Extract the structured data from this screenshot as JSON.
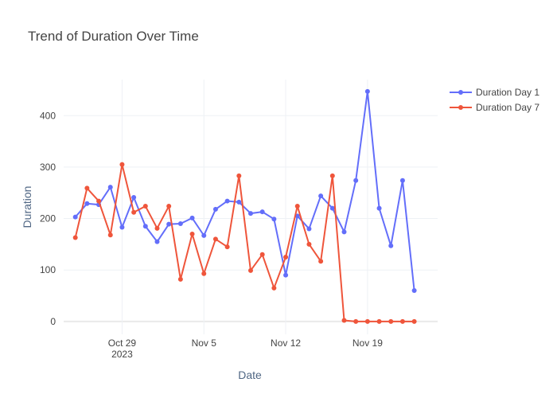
{
  "chart_data": {
    "type": "line",
    "title": "Trend of Duration Over Time",
    "xlabel": "Date",
    "ylabel": "Duration",
    "x": [
      "2023-10-25",
      "2023-10-26",
      "2023-10-27",
      "2023-10-28",
      "2023-10-29",
      "2023-10-30",
      "2023-10-31",
      "2023-11-01",
      "2023-11-02",
      "2023-11-03",
      "2023-11-04",
      "2023-11-05",
      "2023-11-06",
      "2023-11-07",
      "2023-11-08",
      "2023-11-09",
      "2023-11-10",
      "2023-11-11",
      "2023-11-12",
      "2023-11-13",
      "2023-11-14",
      "2023-11-15",
      "2023-11-16",
      "2023-11-17",
      "2023-11-18",
      "2023-11-19",
      "2023-11-20",
      "2023-11-21",
      "2023-11-22",
      "2023-11-23"
    ],
    "x_ticks": [
      {
        "date": "2023-10-29",
        "label": "Oct 29",
        "sublabel": "2023"
      },
      {
        "date": "2023-11-05",
        "label": "Nov 5",
        "sublabel": ""
      },
      {
        "date": "2023-11-12",
        "label": "Nov 12",
        "sublabel": ""
      },
      {
        "date": "2023-11-19",
        "label": "Nov 19",
        "sublabel": ""
      }
    ],
    "y_ticks": [
      0,
      100,
      200,
      300,
      400
    ],
    "ylim": [
      -25,
      470
    ],
    "xlim": [
      "2023-10-24",
      "2023-11-25"
    ],
    "grid": true,
    "legend_position": "top-right",
    "series": [
      {
        "name": "Duration Day 1",
        "color": "#636efa",
        "values": [
          203,
          229,
          227,
          261,
          183,
          241,
          185,
          155,
          189,
          190,
          201,
          167,
          218,
          234,
          232,
          210,
          213,
          199,
          90,
          205,
          180,
          244,
          220,
          174,
          274,
          447,
          220,
          147,
          274,
          60
        ]
      },
      {
        "name": "Duration Day 7",
        "color": "#ef553b",
        "values": [
          163,
          259,
          234,
          168,
          305,
          212,
          224,
          181,
          224,
          82,
          170,
          93,
          160,
          145,
          283,
          99,
          130,
          65,
          125,
          224,
          150,
          117,
          283,
          2,
          0,
          0,
          0,
          0,
          0,
          0
        ]
      }
    ]
  }
}
